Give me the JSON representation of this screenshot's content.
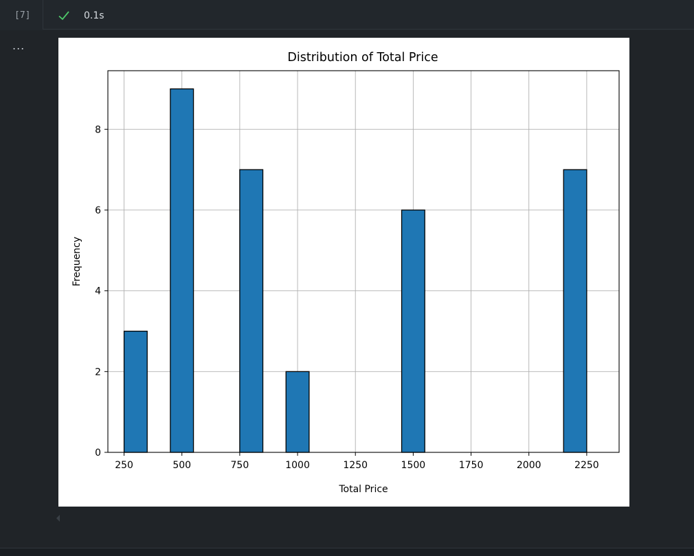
{
  "cell": {
    "execution_count": "[7]",
    "status_icon": "check-icon",
    "duration": "0.1s",
    "output_menu": "..."
  },
  "colors": {
    "bar_fill": "#1f77b4",
    "bar_edge": "#000000",
    "grid": "#b0b0b0",
    "success": "#4ec96a"
  },
  "chart_data": {
    "type": "bar",
    "title": "Distribution of Total Price",
    "xlabel": "Total Price",
    "ylabel": "Frequency",
    "grid": true,
    "xlim": [
      180,
      2390
    ],
    "ylim": [
      0,
      9.45
    ],
    "xticks": [
      250,
      500,
      750,
      1000,
      1250,
      1500,
      1750,
      2000,
      2250
    ],
    "xtick_labels": [
      "250",
      "500",
      "750",
      "1000",
      "1250",
      "1500",
      "1750",
      "2000",
      "2250"
    ],
    "yticks": [
      0,
      2,
      4,
      6,
      8
    ],
    "ytick_labels": [
      "0",
      "2",
      "4",
      "6",
      "8"
    ],
    "bins": [
      {
        "x0": 250,
        "x1": 350,
        "count": 3
      },
      {
        "x0": 450,
        "x1": 550,
        "count": 9
      },
      {
        "x0": 750,
        "x1": 850,
        "count": 7
      },
      {
        "x0": 950,
        "x1": 1050,
        "count": 2
      },
      {
        "x0": 1450,
        "x1": 1550,
        "count": 6
      },
      {
        "x0": 2150,
        "x1": 2250,
        "count": 7
      }
    ]
  }
}
